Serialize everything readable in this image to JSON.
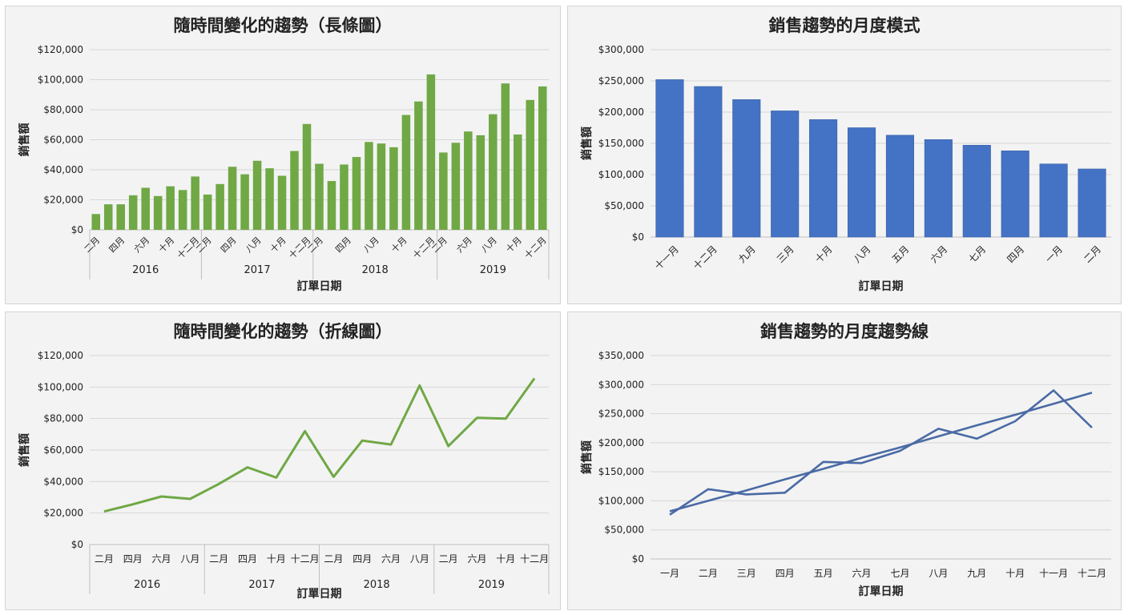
{
  "chart_data": [
    {
      "type": "bar",
      "title": "隨時間變化的趨勢（長條圖）",
      "xlabel": "訂單日期",
      "ylabel": "銷售額",
      "ylim": [
        0,
        120000
      ],
      "yticks": [
        "$0",
        "$20,000",
        "$40,000",
        "$60,000",
        "$80,000",
        "$100,000",
        "$120,000"
      ],
      "color": "#70a845",
      "groups": [
        {
          "year": "2016",
          "labels": [
            "二月",
            "四月",
            "六月",
            "十月",
            "十二月"
          ]
        },
        {
          "year": "2017",
          "labels": [
            "二月",
            "四月",
            "八月",
            "十月",
            "十二月"
          ]
        },
        {
          "year": "2018",
          "labels": [
            "二月",
            "四月",
            "八月",
            "十月",
            "十二月"
          ]
        },
        {
          "year": "2019",
          "labels": [
            "二月",
            "六月",
            "八月",
            "十月",
            "十二月"
          ]
        }
      ],
      "values": [
        10500,
        17000,
        17000,
        23000,
        28000,
        22500,
        29000,
        26500,
        35500,
        23500,
        30500,
        42000,
        37000,
        46000,
        41000,
        36000,
        52500,
        70500,
        44000,
        32500,
        43500,
        48500,
        58500,
        57500,
        55000,
        76500,
        85500,
        103500,
        51500,
        58000,
        65500,
        63000,
        77000,
        97500,
        63500,
        86500,
        95500
      ],
      "grid": true,
      "legend": "none"
    },
    {
      "type": "bar",
      "title": "銷售趨勢的月度模式",
      "xlabel": "訂單日期",
      "ylabel": "銷售額",
      "ylim": [
        0,
        300000
      ],
      "yticks": [
        "$0",
        "$50,000",
        "$100,000",
        "$150,000",
        "$200,000",
        "$250,000",
        "$300,000"
      ],
      "color": "#4472c4",
      "categories": [
        "十一月",
        "十二月",
        "九月",
        "三月",
        "十月",
        "八月",
        "五月",
        "六月",
        "七月",
        "四月",
        "一月",
        "二月"
      ],
      "values": [
        252000,
        241000,
        220000,
        202000,
        188000,
        175000,
        163000,
        156000,
        147000,
        138000,
        117000,
        109000
      ],
      "grid": true,
      "legend": "none"
    },
    {
      "type": "line",
      "title": "隨時間變化的趨勢（折線圖）",
      "xlabel": "訂單日期",
      "ylabel": "銷售額",
      "ylim": [
        0,
        120000
      ],
      "yticks": [
        "$0",
        "$20,000",
        "$40,000",
        "$60,000",
        "$80,000",
        "$100,000",
        "$120,000"
      ],
      "color": "#70a845",
      "groups": [
        {
          "year": "2016",
          "labels": [
            "二月",
            "四月",
            "六月",
            "八月"
          ]
        },
        {
          "year": "2017",
          "labels": [
            "二月",
            "四月",
            "十月",
            "十二月"
          ]
        },
        {
          "year": "2018",
          "labels": [
            "二月",
            "四月",
            "六月",
            "八月"
          ]
        },
        {
          "year": "2019",
          "labels": [
            "二月",
            "六月",
            "十月",
            "十二月"
          ]
        }
      ],
      "values": [
        21000,
        25500,
        30500,
        29000,
        38500,
        49000,
        42500,
        72000,
        43000,
        66000,
        63500,
        101000,
        62500,
        80500,
        80000,
        105500
      ],
      "grid": true,
      "legend": "none"
    },
    {
      "type": "line",
      "title": "銷售趨勢的月度趨勢線",
      "xlabel": "訂單日期",
      "ylabel": "銷售額",
      "ylim": [
        0,
        350000
      ],
      "yticks": [
        "$0",
        "$50,000",
        "$100,000",
        "$150,000",
        "$200,000",
        "$250,000",
        "$300,000",
        "$350,000"
      ],
      "color": "#4a6aa5",
      "categories": [
        "一月",
        "二月",
        "三月",
        "四月",
        "五月",
        "六月",
        "七月",
        "八月",
        "九月",
        "十月",
        "十一月",
        "十二月"
      ],
      "series": [
        {
          "values": [
            76000,
            120000,
            111000,
            114000,
            167000,
            165000,
            186000,
            224000,
            207000,
            237000,
            290000,
            226000
          ]
        },
        {
          "values": [
            82000,
            100000,
            118000,
            137000,
            155000,
            174000,
            192000,
            211000,
            230000,
            248000,
            267000,
            286000
          ]
        }
      ],
      "grid": true,
      "legend": "none"
    }
  ]
}
